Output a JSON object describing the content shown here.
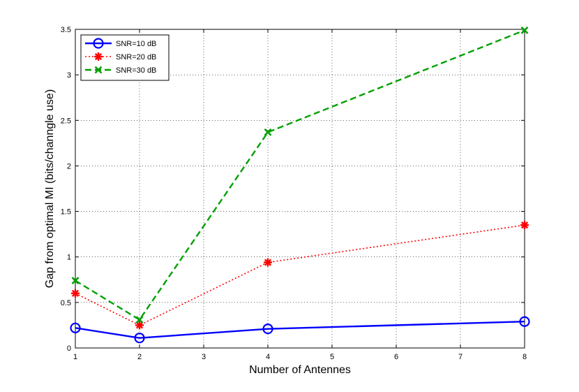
{
  "chart_data": {
    "type": "line",
    "title": "",
    "xlabel": "Number of Antennes",
    "ylabel": "Gap from optimal MI (bits/channgle use)",
    "x": [
      1,
      2,
      4,
      8
    ],
    "xlim": [
      1,
      8
    ],
    "ylim": [
      0,
      3.5
    ],
    "xticks": [
      1,
      2,
      3,
      4,
      5,
      6,
      7,
      8
    ],
    "yticks": [
      0,
      0.5,
      1,
      1.5,
      2,
      2.5,
      3,
      3.5
    ],
    "ytick_labels": [
      "0",
      "0.5",
      "1",
      "1.5",
      "2",
      "2.5",
      "3",
      "3.5"
    ],
    "grid": true,
    "legend_position": "top-left",
    "series": [
      {
        "name": "SNR=10 dB",
        "values": [
          0.22,
          0.11,
          0.21,
          0.29
        ],
        "color": "#0000ff",
        "line_style": "solid",
        "marker": "circle"
      },
      {
        "name": "SNR=20 dB",
        "values": [
          0.6,
          0.25,
          0.94,
          1.35
        ],
        "color": "#ff0000",
        "line_style": "dotted",
        "marker": "asterisk"
      },
      {
        "name": "SNR=30 dB",
        "values": [
          0.74,
          0.31,
          2.37,
          3.49
        ],
        "color": "#00a000",
        "line_style": "dashed",
        "marker": "x"
      }
    ]
  }
}
